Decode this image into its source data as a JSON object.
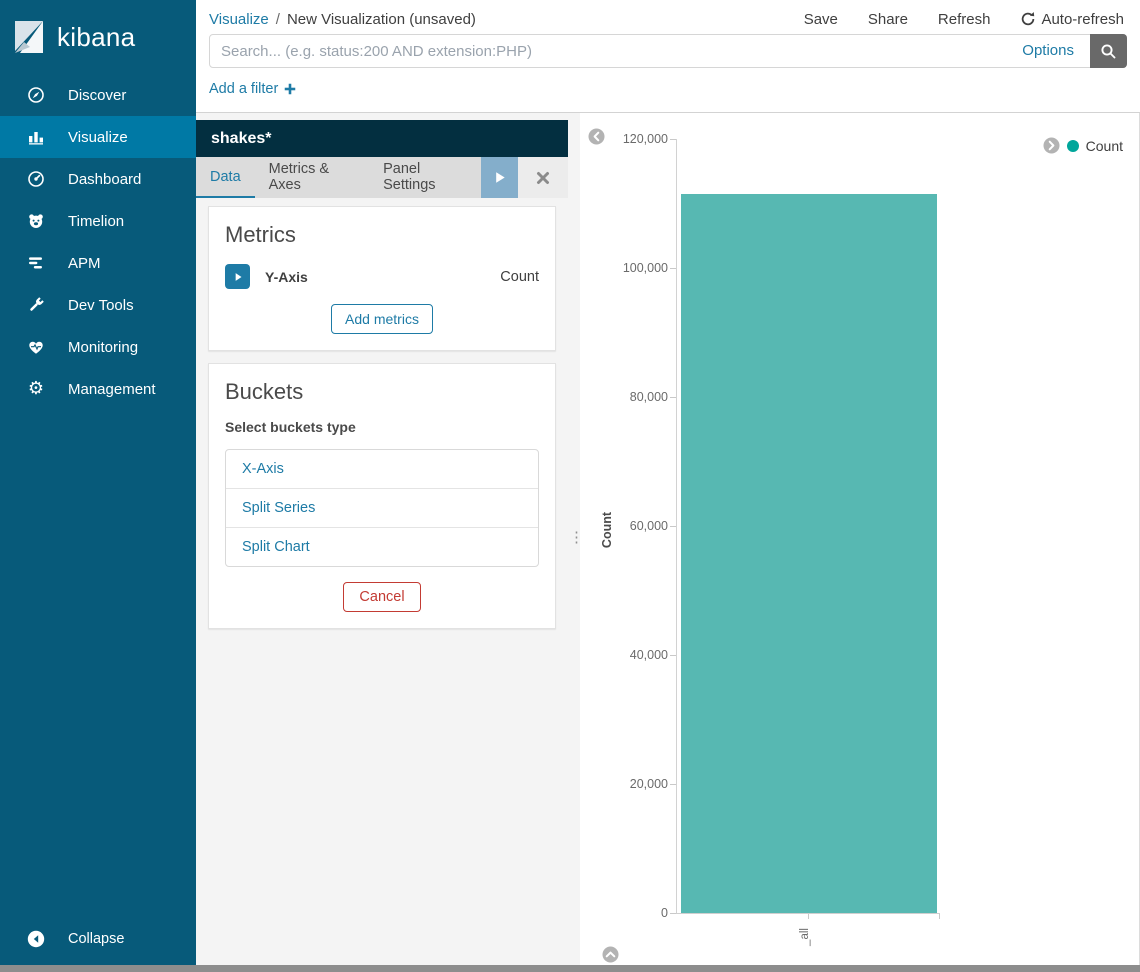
{
  "sidebar": {
    "logo_text": "kibana",
    "items": [
      {
        "label": "Discover",
        "icon": "compass-icon",
        "selected": false
      },
      {
        "label": "Visualize",
        "icon": "bar-chart-icon",
        "selected": true
      },
      {
        "label": "Dashboard",
        "icon": "gauge-icon",
        "selected": false
      },
      {
        "label": "Timelion",
        "icon": "bear-icon",
        "selected": false
      },
      {
        "label": "APM",
        "icon": "lines-icon",
        "selected": false
      },
      {
        "label": "Dev Tools",
        "icon": "wrench-icon",
        "selected": false
      },
      {
        "label": "Monitoring",
        "icon": "heartbeat-icon",
        "selected": false
      },
      {
        "label": "Management",
        "icon": "gear-icon",
        "selected": false
      }
    ],
    "collapse_label": "Collapse"
  },
  "topbar": {
    "breadcrumb": {
      "section": "Visualize",
      "separator": "/",
      "title": "New Visualization (unsaved)"
    },
    "actions": {
      "save": "Save",
      "share": "Share",
      "refresh": "Refresh",
      "auto_refresh": "Auto-refresh"
    }
  },
  "search": {
    "placeholder": "Search... (e.g. status:200 AND extension:PHP)",
    "options_label": "Options"
  },
  "filter_bar": {
    "add_filter_label": "Add a filter"
  },
  "editor": {
    "index_pattern": "shakes*",
    "tabs": [
      {
        "label": "Data",
        "active": true
      },
      {
        "label": "Metrics & Axes",
        "active": false
      },
      {
        "label": "Panel Settings",
        "active": false
      }
    ],
    "metrics": {
      "heading": "Metrics",
      "row": {
        "label": "Y-Axis",
        "value": "Count"
      },
      "add_button_label": "Add metrics"
    },
    "buckets": {
      "heading": "Buckets",
      "subheading": "Select buckets type",
      "options": [
        "X-Axis",
        "Split Series",
        "Split Chart"
      ],
      "cancel_button_label": "Cancel"
    }
  },
  "chart_data": {
    "type": "bar",
    "categories": [
      "_all"
    ],
    "values": [
      111400
    ],
    "title": "",
    "xlabel": "",
    "ylabel": "Count",
    "ylim": [
      0,
      120000
    ],
    "ytick_labels": [
      "120,000",
      "100,000",
      "80,000",
      "60,000",
      "40,000",
      "20,000",
      "0"
    ],
    "legend": [
      "Count"
    ],
    "legend_position": "top-right",
    "grid": false,
    "bar_color": "#57b8b2"
  },
  "colors": {
    "sidebar_bg": "#075a7a",
    "sidebar_selected_bg": "#0079a5",
    "index_header_bg": "#032f40",
    "accent_blue": "#1e7ba6",
    "bar_teal": "#57b8b2",
    "legend_dot_teal": "#00a69b",
    "danger_red": "#c33b33",
    "search_button_gray": "#696969",
    "play_button_blue": "#84aecb"
  }
}
